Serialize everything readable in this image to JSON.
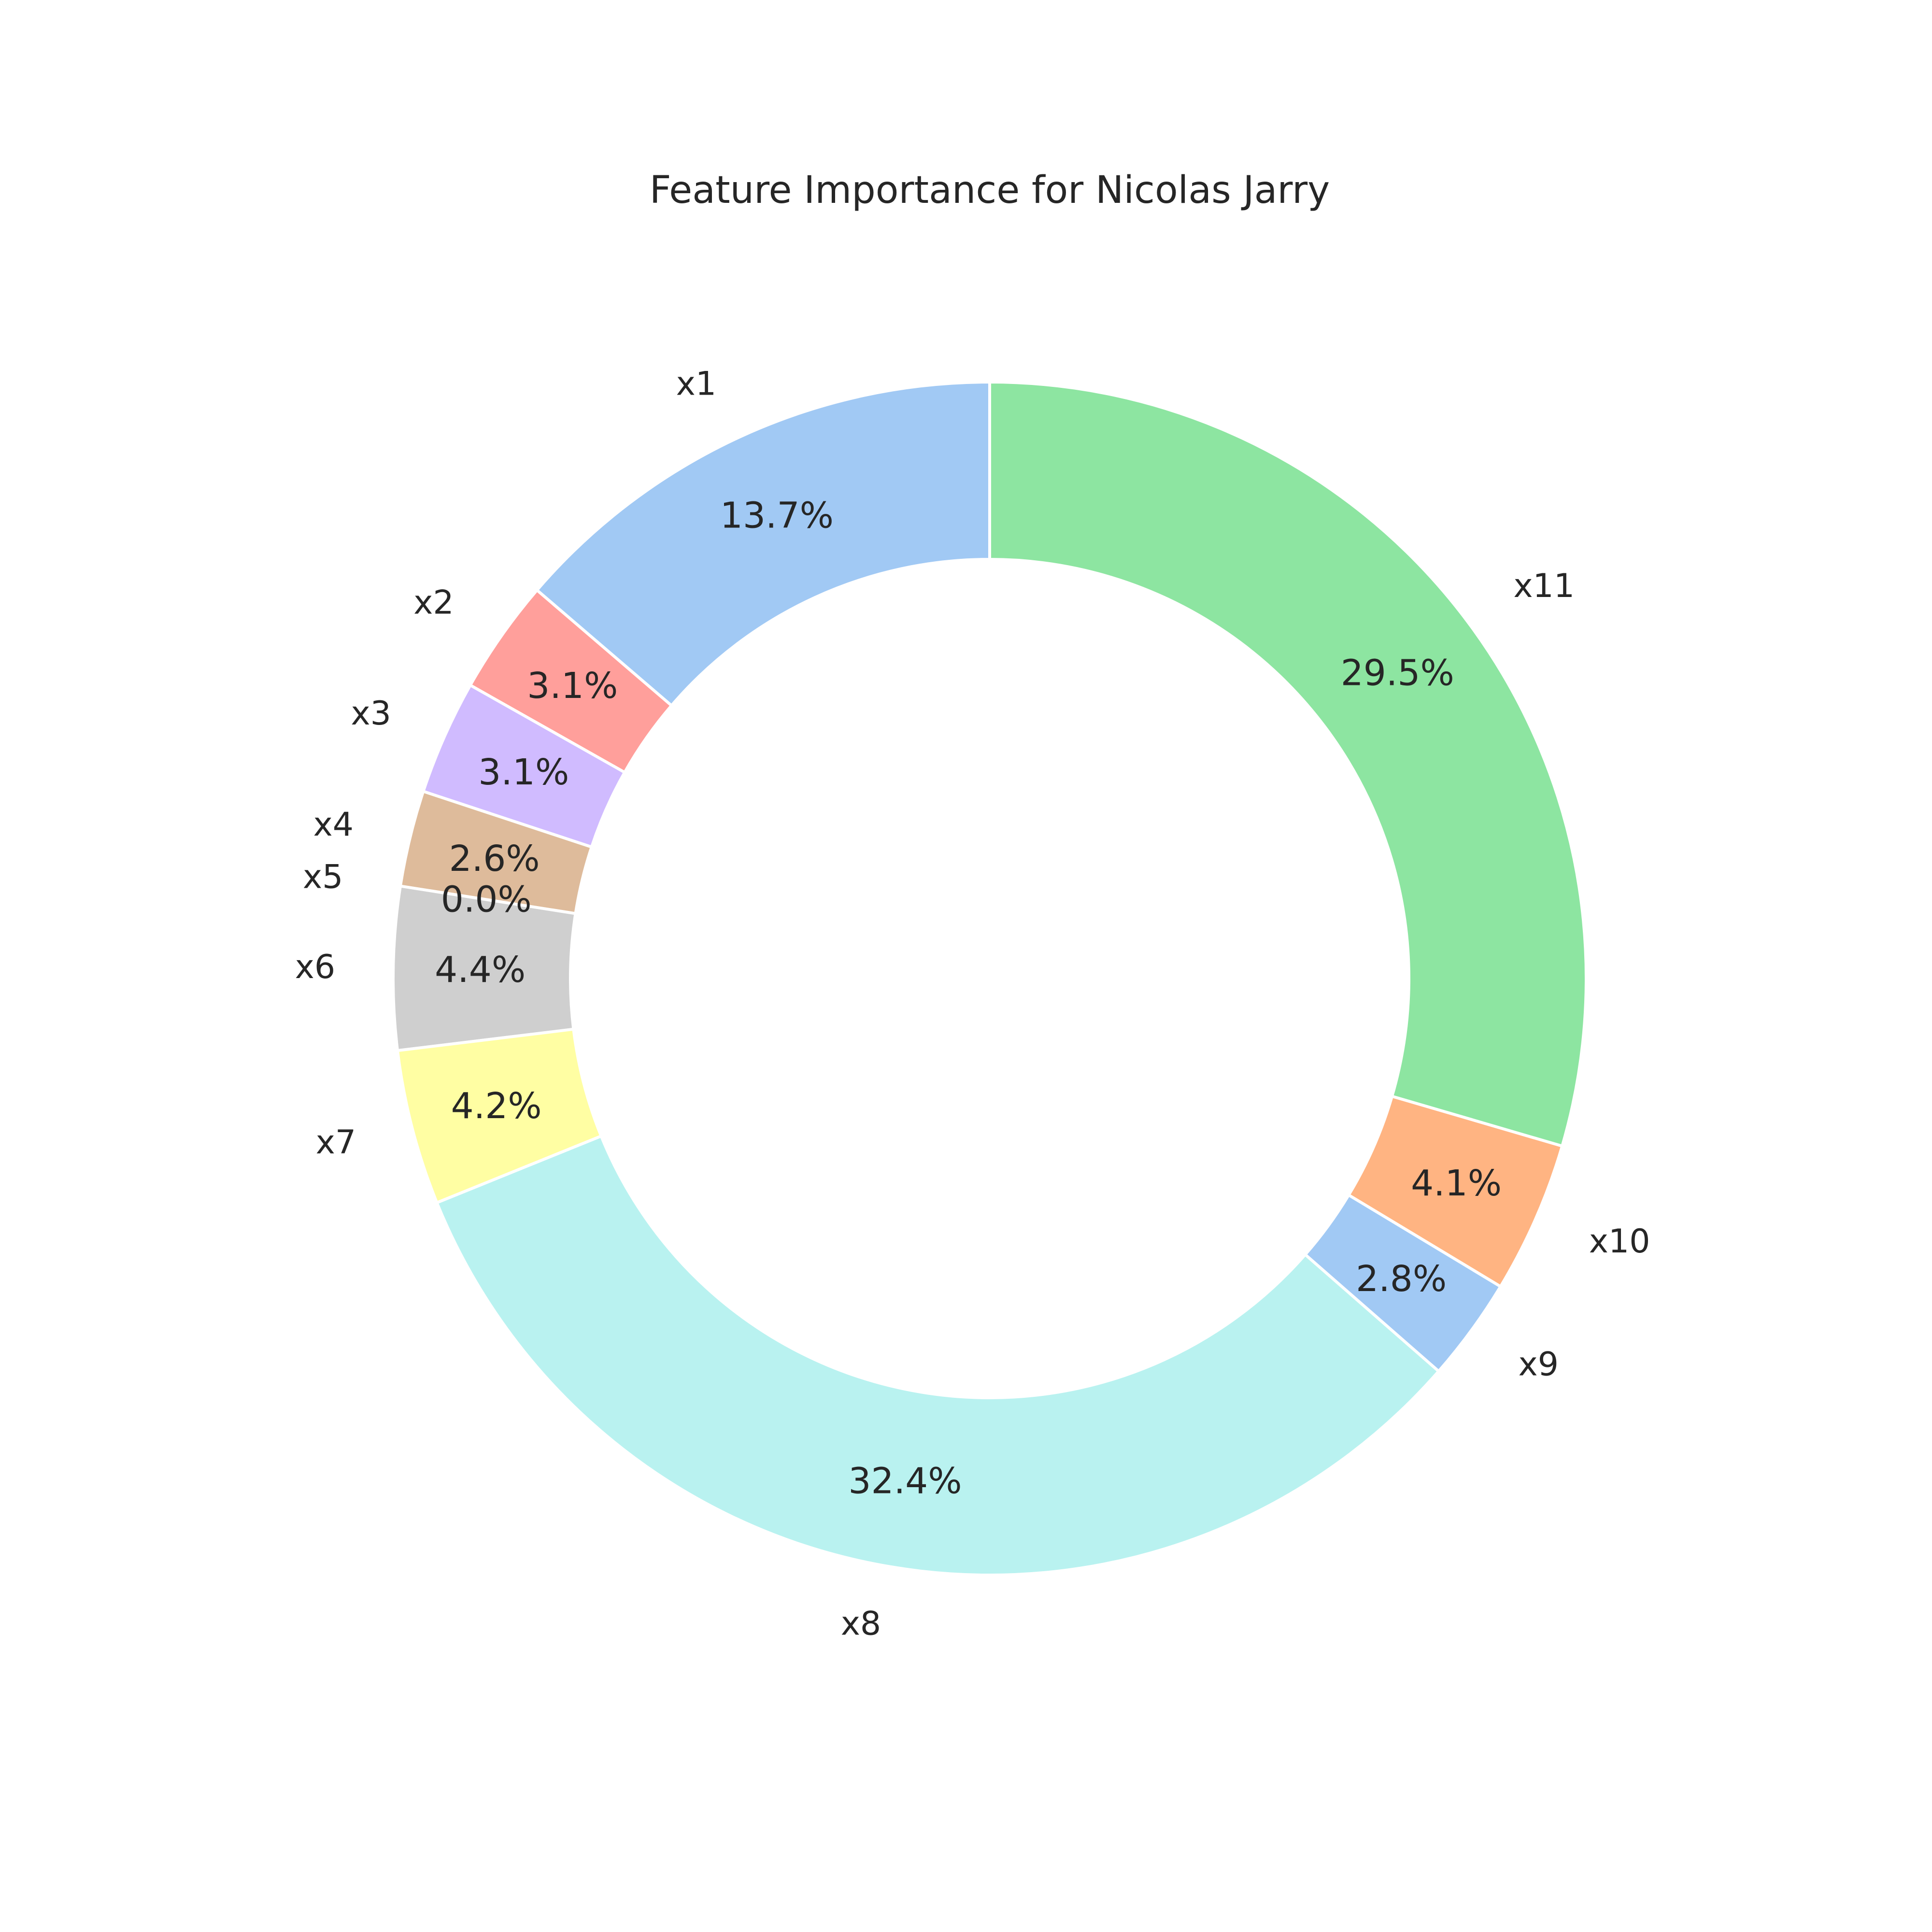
{
  "chart_data": {
    "type": "pie",
    "donut": true,
    "title": "Feature Importance for Nicolas Jarry",
    "slices": [
      {
        "label": "x1",
        "value": 13.7,
        "pct_label": "13.7%",
        "color": "#a1c9f4"
      },
      {
        "label": "x2",
        "value": 3.1,
        "pct_label": "3.1%",
        "color": "#ff9f9b"
      },
      {
        "label": "x3",
        "value": 3.1,
        "pct_label": "3.1%",
        "color": "#d0bbff"
      },
      {
        "label": "x4",
        "value": 2.6,
        "pct_label": "2.6%",
        "color": "#debb9b"
      },
      {
        "label": "x5",
        "value": 0.0,
        "pct_label": "0.0%",
        "color": "#fab0e4"
      },
      {
        "label": "x6",
        "value": 4.4,
        "pct_label": "4.4%",
        "color": "#cfcfcf"
      },
      {
        "label": "x7",
        "value": 4.2,
        "pct_label": "4.2%",
        "color": "#fffea3"
      },
      {
        "label": "x8",
        "value": 32.4,
        "pct_label": "32.4%",
        "color": "#b9f2f0"
      },
      {
        "label": "x9",
        "value": 2.8,
        "pct_label": "2.8%",
        "color": "#a1c9f4"
      },
      {
        "label": "x10",
        "value": 4.1,
        "pct_label": "4.1%",
        "color": "#ffb482"
      },
      {
        "label": "x11",
        "value": 29.5,
        "pct_label": "29.5%",
        "color": "#8de5a1"
      }
    ],
    "start_angle_deg": 90,
    "direction": "counterclockwise",
    "edge_color": "#ffffff"
  }
}
